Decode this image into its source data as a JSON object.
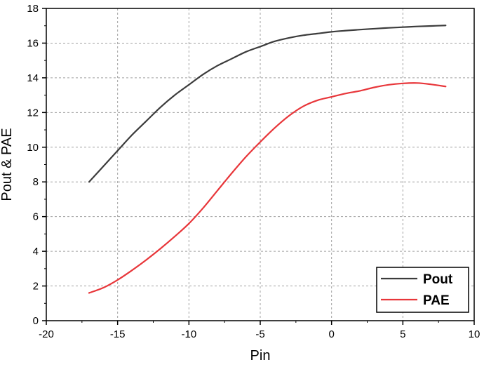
{
  "chart_data": {
    "type": "line",
    "xlabel": "Pin",
    "ylabel": "Pout & PAE",
    "xlim": [
      -20,
      10
    ],
    "ylim": [
      0,
      18
    ],
    "x_ticks": [
      -20,
      -15,
      -10,
      -5,
      0,
      5,
      10
    ],
    "y_ticks": [
      0,
      2,
      4,
      6,
      8,
      10,
      12,
      14,
      16,
      18
    ],
    "x_tick_labels": [
      "-20",
      "-15",
      "-10",
      "-5",
      "0",
      "5",
      "10"
    ],
    "y_tick_labels": [
      "0",
      "2",
      "4",
      "6",
      "8",
      "10",
      "12",
      "14",
      "16",
      "18"
    ],
    "grid": true,
    "legend_position": "bottom-right",
    "series": [
      {
        "name": "Pout",
        "color": "#3c3c3c",
        "x": [
          -17,
          -16,
          -15,
          -14,
          -13,
          -12,
          -11,
          -10,
          -9,
          -8,
          -7,
          -6,
          -5,
          -4,
          -3,
          -2,
          -1,
          0,
          1,
          2,
          3,
          4,
          5,
          6,
          7,
          8
        ],
        "y": [
          8.0,
          8.9,
          9.8,
          10.7,
          11.5,
          12.3,
          13.0,
          13.6,
          14.2,
          14.7,
          15.1,
          15.5,
          15.8,
          16.1,
          16.3,
          16.45,
          16.55,
          16.65,
          16.72,
          16.78,
          16.83,
          16.88,
          16.92,
          16.96,
          16.99,
          17.02
        ]
      },
      {
        "name": "PAE",
        "color": "#e8363a",
        "x": [
          -17,
          -16,
          -15,
          -14,
          -13,
          -12,
          -11,
          -10,
          -9,
          -8,
          -7,
          -6,
          -5,
          -4,
          -3,
          -2,
          -1,
          0,
          1,
          2,
          3,
          4,
          5,
          6,
          7,
          8
        ],
        "y": [
          1.6,
          1.9,
          2.35,
          2.9,
          3.5,
          4.15,
          4.85,
          5.6,
          6.5,
          7.5,
          8.5,
          9.45,
          10.3,
          11.1,
          11.8,
          12.35,
          12.7,
          12.9,
          13.1,
          13.25,
          13.45,
          13.6,
          13.68,
          13.7,
          13.62,
          13.5
        ]
      }
    ]
  }
}
